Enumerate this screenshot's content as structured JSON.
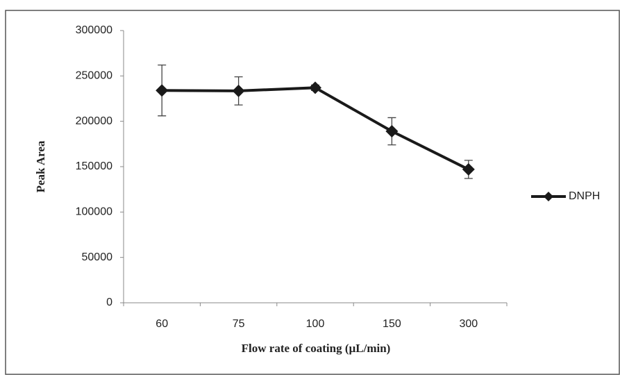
{
  "chart_data": {
    "type": "line",
    "x_label": "Flow rate of coating (µL/min)",
    "y_label": "Peak Area",
    "categories": [
      "60",
      "75",
      "100",
      "150",
      "300"
    ],
    "series": [
      {
        "name": "DNPH",
        "color": "#1a1a1a",
        "values": [
          234000,
          233500,
          237000,
          189000,
          147000
        ],
        "errors": [
          28000,
          15500,
          3000,
          15000,
          10000
        ]
      }
    ],
    "ylim": [
      0,
      300000
    ],
    "yticks": [
      0,
      50000,
      100000,
      150000,
      200000,
      250000,
      300000
    ],
    "legend": "right"
  }
}
